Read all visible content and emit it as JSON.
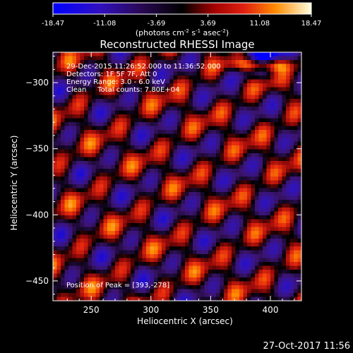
{
  "chart_data": {
    "type": "heatmap",
    "title": "Reconstructed RHESSI Image",
    "xlabel": "Heliocentric X (arcsec)",
    "ylabel": "Heliocentric Y (arcsec)",
    "xlim": [
      218,
      426
    ],
    "ylim": [
      -465,
      -277
    ],
    "x_ticks": [
      250,
      300,
      350,
      400
    ],
    "y_ticks": [
      -300,
      -350,
      -400,
      -450
    ],
    "colorbar": {
      "ticks": [
        "-18.47",
        "-11.08",
        "-3.69",
        "3.69",
        "11.08",
        "18.47"
      ],
      "range": [
        -18.47,
        18.47
      ],
      "label_prefix": "(photons cm",
      "label_sup1": "-2",
      "label_mid": " s",
      "label_sup2": "-1",
      "label_mid2": " asec",
      "label_sup3": "-2",
      "label_suffix": ")"
    },
    "info_lines": [
      "29-Dec-2015 11:26:52.000 to 11:36:52.000",
      "Detectors: 1F 5F 7F, Att 0",
      "Energy Range: 3.0 - 6.0 keV",
      "Clean     Total counts: 7.80E+04"
    ],
    "peak_label": "Position of Peak = [393,-278]",
    "peak": [
      393,
      -278
    ],
    "colormap_colors": [
      "#0000ff",
      "#3a0a8a",
      "#000000",
      "#c01010",
      "#ff8000",
      "#ffffc0"
    ]
  },
  "footer": {
    "timestamp": "27-Oct-2017 11:56"
  }
}
